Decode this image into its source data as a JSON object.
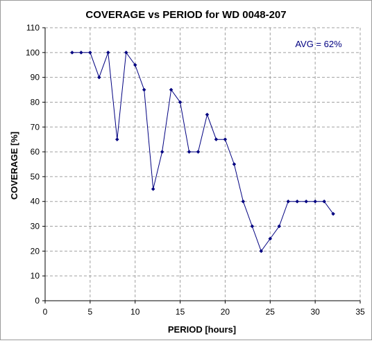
{
  "chart_data": {
    "type": "line",
    "title": "COVERAGE vs PERIOD for WD 0048-207",
    "xlabel": "PERIOD [hours]",
    "ylabel": "COVERAGE [%]",
    "xlim": [
      0,
      35
    ],
    "ylim": [
      0,
      110
    ],
    "xticks": [
      0,
      5,
      10,
      15,
      20,
      25,
      30,
      35
    ],
    "yticks": [
      0,
      10,
      20,
      30,
      40,
      50,
      60,
      70,
      80,
      90,
      100,
      110
    ],
    "grid": true,
    "annotation": "AVG = 62%",
    "series": [
      {
        "color": "#000080",
        "x": [
          3,
          4,
          5,
          6,
          7,
          8,
          9,
          10,
          11,
          12,
          13,
          14,
          15,
          16,
          17,
          18,
          19,
          20,
          21,
          22,
          23,
          24,
          25,
          26,
          27,
          28,
          29,
          30,
          31,
          32
        ],
        "y": [
          100,
          100,
          100,
          90,
          100,
          65,
          100,
          95,
          85,
          45,
          60,
          85,
          80,
          60,
          60,
          75,
          65,
          65,
          55,
          40,
          30,
          20,
          25,
          30,
          40,
          40,
          40,
          40,
          40,
          35
        ]
      }
    ]
  }
}
